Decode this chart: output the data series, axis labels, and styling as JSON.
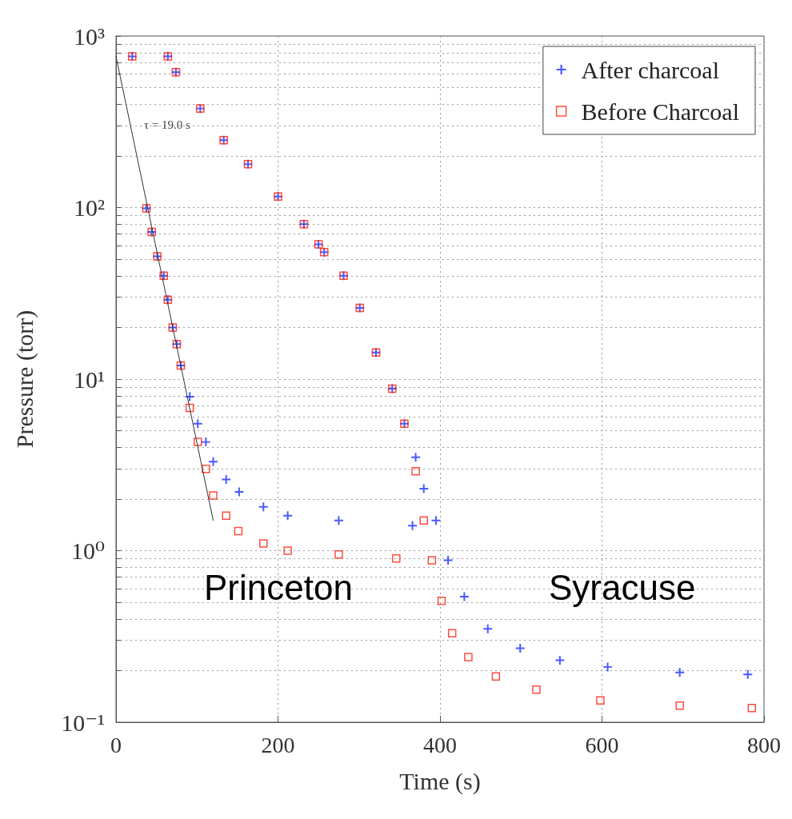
{
  "chart_data": {
    "type": "scatter",
    "xlabel": "Time (s)",
    "ylabel": "Pressure (torr)",
    "log": "y",
    "grid": true,
    "legend": "top right",
    "xlim": [
      0,
      800
    ],
    "xticks": [
      0,
      200,
      400,
      600,
      800
    ],
    "ylim": [
      0.1,
      1000
    ],
    "yticks": [
      {
        "value": 0.1,
        "label": "10⁻¹"
      },
      {
        "value": 0.2,
        "label": null
      },
      {
        "value": 0.3,
        "label": null
      },
      {
        "value": 0.4,
        "label": null
      },
      {
        "value": 0.5,
        "label": null
      },
      {
        "value": 0.6,
        "label": null
      },
      {
        "value": 0.7,
        "label": null
      },
      {
        "value": 0.8,
        "label": null
      },
      {
        "value": 0.9,
        "label": null
      },
      {
        "value": 1,
        "label": "10⁰"
      },
      {
        "value": 2,
        "label": null
      },
      {
        "value": 3,
        "label": null
      },
      {
        "value": 4,
        "label": null
      },
      {
        "value": 5,
        "label": null
      },
      {
        "value": 6,
        "label": null
      },
      {
        "value": 7,
        "label": null
      },
      {
        "value": 8,
        "label": null
      },
      {
        "value": 9,
        "label": null
      },
      {
        "value": 10,
        "label": "10¹"
      },
      {
        "value": 20,
        "label": null
      },
      {
        "value": 30,
        "label": null
      },
      {
        "value": 40,
        "label": null
      },
      {
        "value": 50,
        "label": null
      },
      {
        "value": 60,
        "label": null
      },
      {
        "value": 70,
        "label": null
      },
      {
        "value": 80,
        "label": null
      },
      {
        "value": 90,
        "label": null
      },
      {
        "value": 100,
        "label": "10²"
      },
      {
        "value": 200,
        "label": null
      },
      {
        "value": 300,
        "label": null
      },
      {
        "value": 400,
        "label": null
      },
      {
        "value": 500,
        "label": null
      },
      {
        "value": 600,
        "label": null
      },
      {
        "value": 700,
        "label": null
      },
      {
        "value": 800,
        "label": null
      },
      {
        "value": 900,
        "label": null
      },
      {
        "value": 1000,
        "label": "10³"
      }
    ],
    "series": [
      {
        "name": "After charcoal",
        "color": "#1a2fff",
        "marker": "cross",
        "x": [
          37.5,
          44,
          51,
          59,
          64,
          70,
          75,
          80,
          91,
          101,
          111,
          120,
          136,
          152,
          182,
          212,
          275,
          366,
          20,
          64,
          74,
          104,
          133,
          163,
          200,
          232,
          250,
          257,
          281,
          301,
          321,
          341,
          356,
          370,
          380,
          395,
          410,
          430,
          459,
          499,
          548,
          607,
          696,
          780
        ],
        "values": [
          99,
          72,
          52,
          40,
          29,
          20,
          16,
          12,
          7.9,
          5.5,
          4.3,
          3.3,
          2.6,
          2.2,
          1.8,
          1.6,
          1.5,
          1.4,
          760,
          760,
          615,
          378,
          247,
          179,
          116,
          80,
          61,
          55,
          40,
          26,
          14.3,
          8.8,
          5.5,
          3.5,
          2.3,
          1.5,
          0.88,
          0.54,
          0.35,
          0.27,
          0.23,
          0.21,
          0.195,
          0.19
        ]
      },
      {
        "name": "Before Charcoal",
        "color": "#ff2010",
        "marker": "square",
        "x": [
          37.5,
          44,
          51,
          59,
          64,
          70,
          75,
          80,
          91,
          101,
          111,
          120,
          136,
          151,
          182,
          212,
          275,
          346,
          20,
          64,
          74,
          104,
          133,
          163,
          200,
          232,
          250,
          257,
          281,
          301,
          321,
          341,
          356,
          370,
          380,
          390,
          402,
          415,
          435,
          469,
          519,
          598,
          696,
          785
        ],
        "values": [
          99,
          72,
          52,
          40,
          29,
          20,
          16,
          12,
          6.8,
          4.3,
          3.0,
          2.1,
          1.6,
          1.3,
          1.1,
          1.0,
          0.95,
          0.9,
          760,
          760,
          615,
          378,
          247,
          179,
          116,
          80,
          61,
          55,
          40,
          26,
          14.3,
          8.8,
          5.5,
          2.9,
          1.5,
          0.88,
          0.51,
          0.33,
          0.24,
          0.185,
          0.155,
          0.134,
          0.125,
          0.121
        ]
      },
      {
        "type": "line",
        "color": "#333333",
        "x": [
          0,
          120
        ],
        "values": [
          760,
          1.5
        ]
      }
    ],
    "annotations": [
      "τ = 19.0 s",
      "Princeton",
      "Syracuse"
    ]
  }
}
